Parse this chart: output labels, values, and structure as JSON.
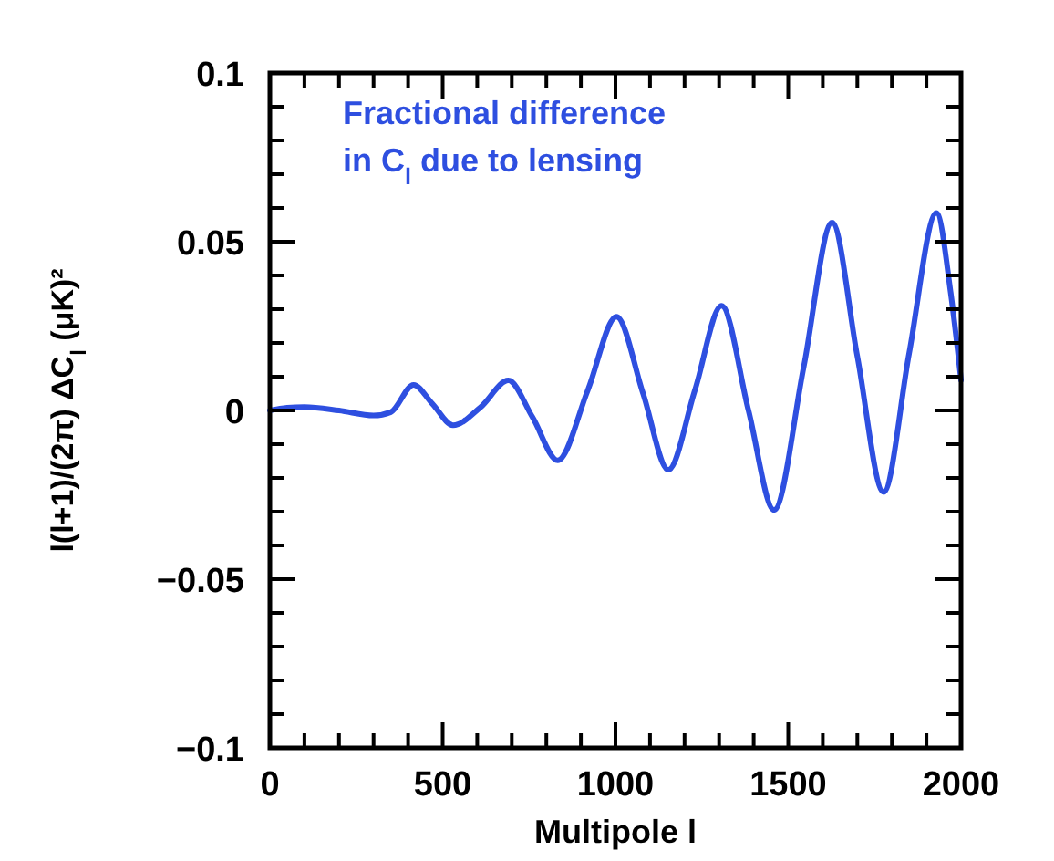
{
  "chart_data": {
    "type": "line",
    "xlabel": "Multipole l",
    "ylabel": "l(l+1)/(2π) ΔC$_{l}$ (μK)²",
    "annotations": [
      "Fractional difference",
      "in C$_{l}$ due to lensing"
    ],
    "xlim": [
      0,
      2000
    ],
    "ylim": [
      -0.1,
      0.1
    ],
    "xticks": [
      0,
      {
        "value": 100,
        "label": null
      },
      {
        "value": 200,
        "label": null
      },
      {
        "value": 300,
        "label": null
      },
      {
        "value": 400,
        "label": null
      },
      500,
      {
        "value": 600,
        "label": null
      },
      {
        "value": 700,
        "label": null
      },
      {
        "value": 800,
        "label": null
      },
      {
        "value": 900,
        "label": null
      },
      1000,
      {
        "value": 1100,
        "label": null
      },
      {
        "value": 1200,
        "label": null
      },
      {
        "value": 1300,
        "label": null
      },
      {
        "value": 1400,
        "label": null
      },
      1500,
      {
        "value": 1600,
        "label": null
      },
      {
        "value": 1700,
        "label": null
      },
      {
        "value": 1800,
        "label": null
      },
      {
        "value": 1900,
        "label": null
      },
      2000
    ],
    "yticks": [
      {
        "value": -0.1,
        "label": "−0.1"
      },
      {
        "value": -0.09,
        "label": null
      },
      {
        "value": -0.08,
        "label": null
      },
      {
        "value": -0.07,
        "label": null
      },
      {
        "value": -0.06,
        "label": null
      },
      {
        "value": -0.05,
        "label": "−0.05"
      },
      {
        "value": -0.04,
        "label": null
      },
      {
        "value": -0.03,
        "label": null
      },
      {
        "value": -0.02,
        "label": null
      },
      {
        "value": -0.01,
        "label": null
      },
      0,
      {
        "value": 0.01,
        "label": null
      },
      {
        "value": 0.02,
        "label": null
      },
      {
        "value": 0.03,
        "label": null
      },
      {
        "value": 0.04,
        "label": null
      },
      0.05,
      {
        "value": 0.06,
        "label": null
      },
      {
        "value": 0.07,
        "label": null
      },
      {
        "value": 0.08,
        "label": null
      },
      {
        "value": 0.09,
        "label": null
      },
      0.1
    ],
    "grid": false,
    "marker": "none",
    "line_style": "solid",
    "series": [
      {
        "color": "#2e4fe0",
        "x": [
          0,
          50,
          100,
          200,
          300,
          350,
          416,
          470,
          530,
          610,
          690,
          760,
          833,
          920,
          1003,
          1080,
          1153,
          1230,
          1307,
          1385,
          1459,
          1545,
          1627,
          1700,
          1776,
          1850,
          1929,
          1970,
          2000
        ],
        "values": [
          0,
          0.0008,
          0.001,
          0,
          -0.0015,
          -0.0005,
          0.0076,
          0.002,
          -0.0044,
          0.001,
          0.0089,
          -0.002,
          -0.0148,
          0.006,
          0.0278,
          0.005,
          -0.0176,
          0.006,
          0.031,
          0.0,
          -0.0295,
          0.013,
          0.0557,
          0.016,
          -0.0242,
          0.017,
          0.0585,
          0.035,
          0.009
        ]
      }
    ]
  }
}
